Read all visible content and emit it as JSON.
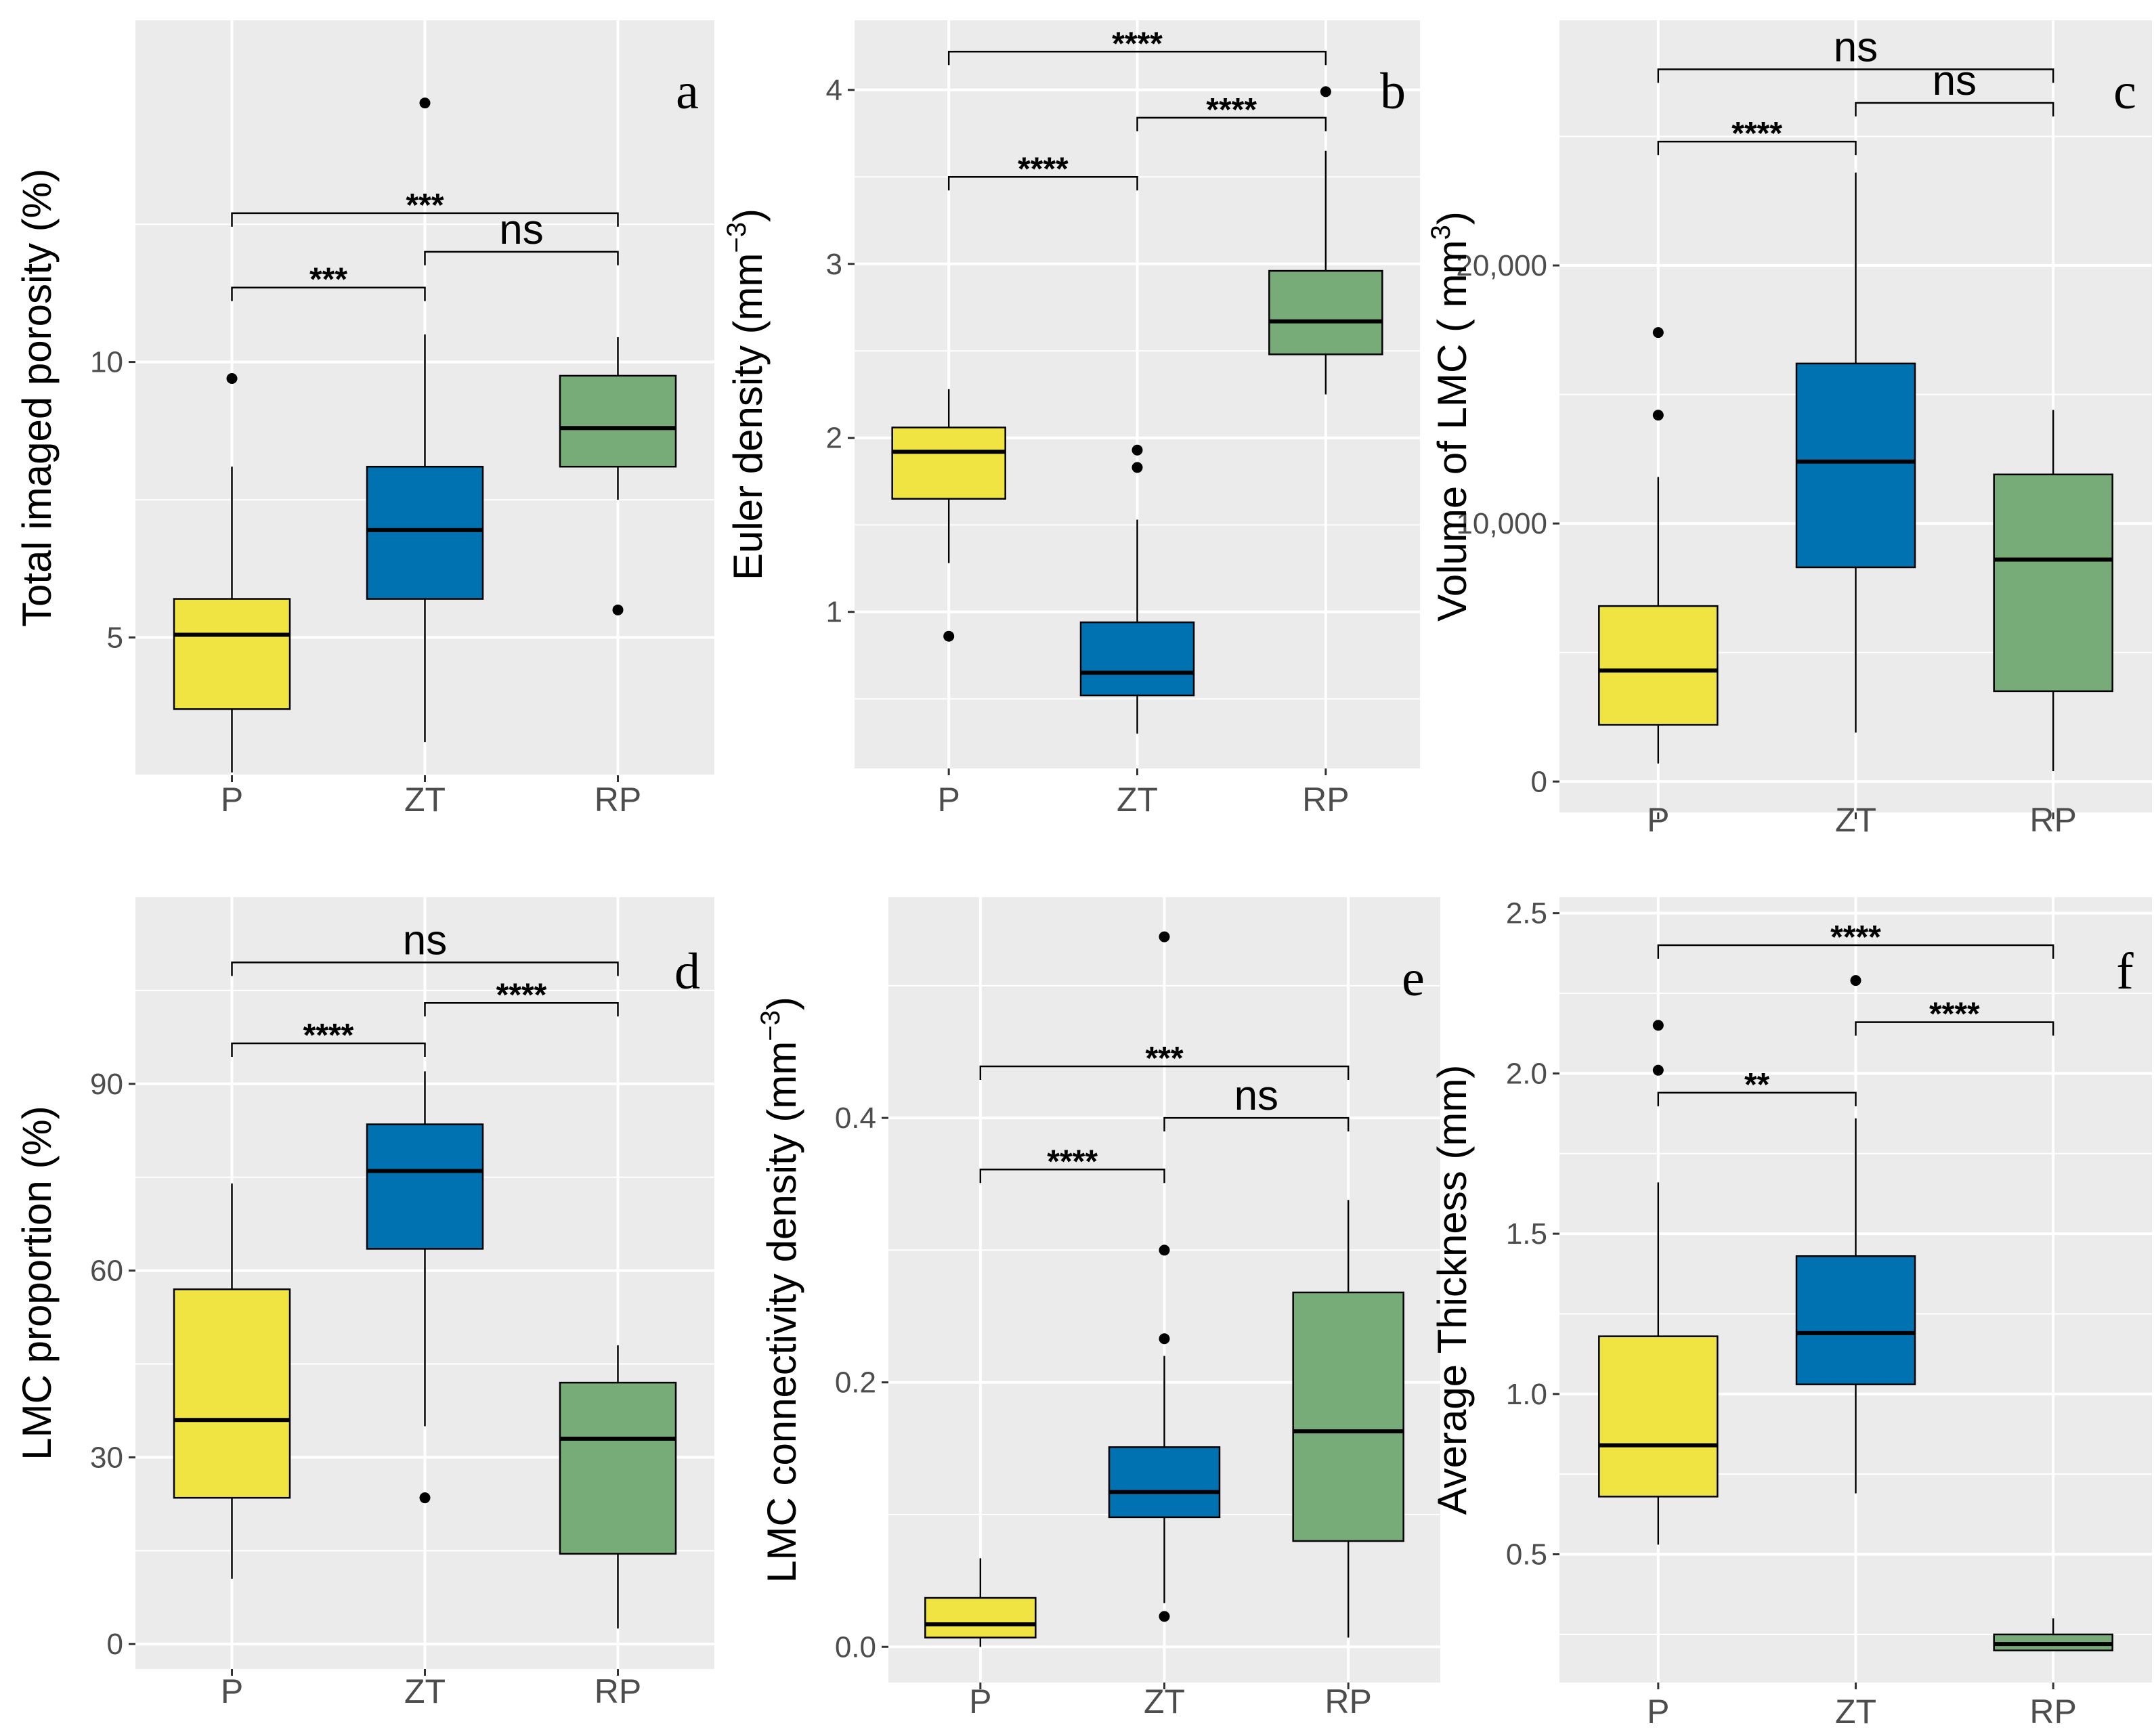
{
  "colors": {
    "P": "#F0E442",
    "ZT": "#0072B2",
    "RP": "#77AB78",
    "panel_bg": "#EBEBEB",
    "grid": "#FFFFFF"
  },
  "chart_data": [
    {
      "panel": "a",
      "type": "boxplot",
      "ylabel": "Total imaged porosity (%)",
      "ylim": [
        2.5,
        16.2
      ],
      "yticks": [
        5,
        10
      ],
      "ytick_labels": [
        "5",
        "10"
      ],
      "categories": [
        "P",
        "ZT",
        "RP"
      ],
      "boxes": [
        {
          "group": "P",
          "q1": 3.7,
          "median": 5.05,
          "q3": 5.7,
          "whisker_low": 2.55,
          "whisker_high": 8.1,
          "outliers": [
            9.7
          ]
        },
        {
          "group": "ZT",
          "q1": 5.7,
          "median": 6.95,
          "q3": 8.1,
          "whisker_low": 3.1,
          "whisker_high": 10.5,
          "outliers": [
            14.7
          ]
        },
        {
          "group": "RP",
          "q1": 8.1,
          "median": 8.8,
          "q3": 9.75,
          "whisker_low": 7.5,
          "whisker_high": 10.45,
          "outliers": [
            5.5
          ]
        }
      ],
      "comparisons": [
        {
          "from": "P",
          "to": "ZT",
          "label": "***",
          "level": 11.35
        },
        {
          "from": "ZT",
          "to": "RP",
          "label": "ns",
          "level": 12.0
        },
        {
          "from": "P",
          "to": "RP",
          "label": "***",
          "level": 12.7
        }
      ]
    },
    {
      "panel": "b",
      "type": "boxplot",
      "ylabel": "Euler density (mm",
      "ylabel_sup": "−3",
      "ylabel_end": ")",
      "ylim": [
        0.1,
        4.4
      ],
      "yticks": [
        1,
        2,
        3,
        4
      ],
      "ytick_labels": [
        "1",
        "2",
        "3",
        "4"
      ],
      "categories": [
        "P",
        "ZT",
        "RP"
      ],
      "boxes": [
        {
          "group": "P",
          "q1": 1.65,
          "median": 1.92,
          "q3": 2.06,
          "whisker_low": 1.28,
          "whisker_high": 2.28,
          "outliers": [
            0.86
          ]
        },
        {
          "group": "ZT",
          "q1": 0.52,
          "median": 0.65,
          "q3": 0.94,
          "whisker_low": 0.3,
          "whisker_high": 1.53,
          "outliers": [
            1.83,
            1.93
          ]
        },
        {
          "group": "RP",
          "q1": 2.48,
          "median": 2.67,
          "q3": 2.96,
          "whisker_low": 2.25,
          "whisker_high": 3.65,
          "outliers": [
            3.99
          ]
        }
      ],
      "comparisons": [
        {
          "from": "P",
          "to": "ZT",
          "label": "****",
          "level": 3.5
        },
        {
          "from": "ZT",
          "to": "RP",
          "label": "****",
          "level": 3.84
        },
        {
          "from": "P",
          "to": "RP",
          "label": "****",
          "level": 4.22
        }
      ]
    },
    {
      "panel": "c",
      "type": "boxplot",
      "ylabel": "Volume of LMC ( mm",
      "ylabel_sup": "3",
      "ylabel_end": ")",
      "ylim": [
        -1200,
        29500
      ],
      "yticks": [
        0,
        10000,
        20000
      ],
      "ytick_labels": [
        "0",
        "10,000",
        "20,000"
      ],
      "categories": [
        "P",
        "ZT",
        "RP"
      ],
      "boxes": [
        {
          "group": "P",
          "q1": 2200,
          "median": 4300,
          "q3": 6800,
          "whisker_low": 700,
          "whisker_high": 11800,
          "outliers": [
            14200,
            17400
          ]
        },
        {
          "group": "ZT",
          "q1": 8300,
          "median": 12400,
          "q3": 16200,
          "whisker_low": 1900,
          "whisker_high": 23600,
          "outliers": []
        },
        {
          "group": "RP",
          "q1": 3500,
          "median": 8600,
          "q3": 11900,
          "whisker_low": 400,
          "whisker_high": 14400,
          "outliers": []
        }
      ],
      "comparisons": [
        {
          "from": "P",
          "to": "ZT",
          "label": "****",
          "level": 24800
        },
        {
          "from": "ZT",
          "to": "RP",
          "label": "ns",
          "level": 26300
        },
        {
          "from": "P",
          "to": "RP",
          "label": "ns",
          "level": 27600
        }
      ]
    },
    {
      "panel": "d",
      "type": "boxplot",
      "ylabel": "LMC proportion (%)",
      "ylim": [
        -4,
        120
      ],
      "yticks": [
        0,
        30,
        60,
        90
      ],
      "ytick_labels": [
        "0",
        "30",
        "60",
        "90"
      ],
      "categories": [
        "P",
        "ZT",
        "RP"
      ],
      "boxes": [
        {
          "group": "P",
          "q1": 23.5,
          "median": 36,
          "q3": 57,
          "whisker_low": 10.5,
          "whisker_high": 74,
          "outliers": []
        },
        {
          "group": "ZT",
          "q1": 63.5,
          "median": 76,
          "q3": 83.5,
          "whisker_low": 35,
          "whisker_high": 92,
          "outliers": [
            23.5
          ]
        },
        {
          "group": "RP",
          "q1": 14.5,
          "median": 33,
          "q3": 42,
          "whisker_low": 2.5,
          "whisker_high": 48,
          "outliers": []
        }
      ],
      "comparisons": [
        {
          "from": "P",
          "to": "ZT",
          "label": "****",
          "level": 96.5
        },
        {
          "from": "ZT",
          "to": "RP",
          "label": "****",
          "level": 103
        },
        {
          "from": "P",
          "to": "RP",
          "label": "ns",
          "level": 109.5
        }
      ]
    },
    {
      "panel": "e",
      "type": "boxplot",
      "ylabel": "LMC connectivity density (mm",
      "ylabel_sup": "−3",
      "ylabel_end": ")",
      "ylim": [
        -0.027,
        0.567
      ],
      "yticks": [
        0.0,
        0.2,
        0.4
      ],
      "ytick_labels": [
        "0.0",
        "0.2",
        "0.4"
      ],
      "categories": [
        "P",
        "ZT",
        "RP"
      ],
      "boxes": [
        {
          "group": "P",
          "q1": 0.007,
          "median": 0.017,
          "q3": 0.037,
          "whisker_low": 0.0,
          "whisker_high": 0.067,
          "outliers": []
        },
        {
          "group": "ZT",
          "q1": 0.098,
          "median": 0.117,
          "q3": 0.151,
          "whisker_low": 0.033,
          "whisker_high": 0.22,
          "outliers": [
            0.023,
            0.233,
            0.3,
            0.537
          ]
        },
        {
          "group": "RP",
          "q1": 0.08,
          "median": 0.163,
          "q3": 0.268,
          "whisker_low": 0.007,
          "whisker_high": 0.338,
          "outliers": []
        }
      ],
      "comparisons": [
        {
          "from": "P",
          "to": "ZT",
          "label": "****",
          "level": 0.361
        },
        {
          "from": "ZT",
          "to": "RP",
          "label": "ns",
          "level": 0.4
        },
        {
          "from": "P",
          "to": "RP",
          "label": "***",
          "level": 0.439
        }
      ]
    },
    {
      "panel": "f",
      "type": "boxplot",
      "ylabel": "Average Thickness (mm)",
      "ylim": [
        0.1,
        2.55
      ],
      "yticks": [
        0.5,
        1.0,
        1.5,
        2.0,
        2.5
      ],
      "ytick_labels": [
        "0.5",
        "1.0",
        "1.5",
        "2.0",
        "2.5"
      ],
      "categories": [
        "P",
        "ZT",
        "RP"
      ],
      "boxes": [
        {
          "group": "P",
          "q1": 0.68,
          "median": 0.84,
          "q3": 1.18,
          "whisker_low": 0.53,
          "whisker_high": 1.66,
          "outliers": [
            2.01,
            2.15
          ]
        },
        {
          "group": "ZT",
          "q1": 1.03,
          "median": 1.19,
          "q3": 1.43,
          "whisker_low": 0.69,
          "whisker_high": 1.86,
          "outliers": [
            2.29
          ]
        },
        {
          "group": "RP",
          "q1": 0.2,
          "median": 0.22,
          "q3": 0.25,
          "whisker_low": 0.2,
          "whisker_high": 0.3,
          "outliers": []
        }
      ],
      "comparisons": [
        {
          "from": "P",
          "to": "ZT",
          "label": "**",
          "level": 1.94
        },
        {
          "from": "ZT",
          "to": "RP",
          "label": "****",
          "level": 2.16
        },
        {
          "from": "P",
          "to": "RP",
          "label": "****",
          "level": 2.4
        }
      ]
    }
  ]
}
